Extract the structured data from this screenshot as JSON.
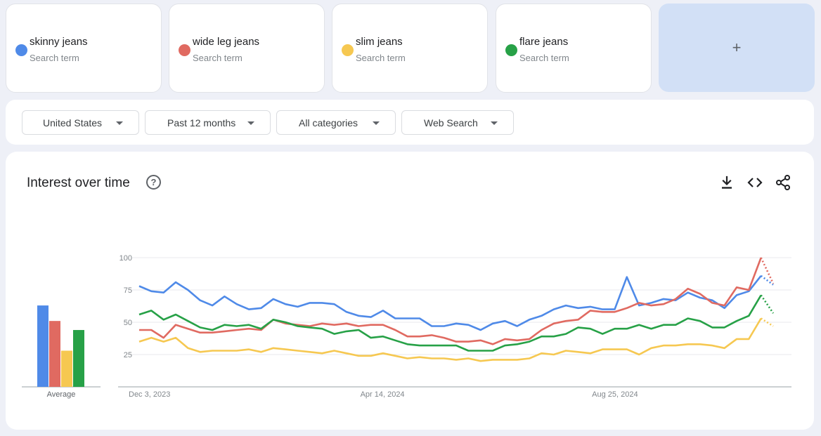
{
  "search_terms": [
    {
      "name": "skinny jeans",
      "sub": "Search term",
      "color": "#4f8ae8"
    },
    {
      "name": "wide leg jeans",
      "sub": "Search term",
      "color": "#e06a61"
    },
    {
      "name": "slim jeans",
      "sub": "Search term",
      "color": "#f6c851"
    },
    {
      "name": "flare jeans",
      "sub": "Search term",
      "color": "#27a147"
    }
  ],
  "add_button": {
    "label": "+"
  },
  "filters": {
    "region": "United States",
    "time_range": "Past 12 months",
    "category": "All categories",
    "search_type": "Web Search"
  },
  "section": {
    "title": "Interest over time",
    "help_glyph": "?",
    "download_icon": "download-icon",
    "embed_icon": "embed-code-icon",
    "share_icon": "share-icon"
  },
  "chart_data": {
    "type": "line",
    "title": "Interest over time",
    "xlabel": "",
    "ylabel": "",
    "ylim": [
      0,
      100
    ],
    "y_ticks": [
      25,
      50,
      75,
      100
    ],
    "grid": true,
    "x_tick_labels": [
      {
        "label": "Dec 3, 2023",
        "index": 0
      },
      {
        "label": "Apr 14, 2024",
        "index": 19
      },
      {
        "label": "Aug 25, 2024",
        "index": 38
      }
    ],
    "average_label": "Average",
    "partial_data_last_point": true,
    "series": [
      {
        "name": "skinny jeans",
        "color": "#4f8ae8",
        "average": 63,
        "values": [
          78,
          74,
          73,
          81,
          75,
          67,
          63,
          70,
          64,
          60,
          61,
          68,
          64,
          62,
          65,
          65,
          64,
          58,
          55,
          54,
          59,
          53,
          53,
          53,
          47,
          47,
          49,
          48,
          44,
          49,
          51,
          47,
          52,
          55,
          60,
          63,
          61,
          62,
          60,
          60,
          85,
          63,
          65,
          68,
          67,
          73,
          69,
          67,
          61,
          71,
          74,
          86,
          79
        ]
      },
      {
        "name": "wide leg jeans",
        "color": "#e06a61",
        "average": 51,
        "values": [
          44,
          44,
          38,
          48,
          45,
          42,
          42,
          43,
          44,
          45,
          44,
          52,
          49,
          48,
          47,
          49,
          48,
          49,
          47,
          48,
          48,
          44,
          39,
          39,
          40,
          38,
          35,
          35,
          36,
          33,
          37,
          36,
          37,
          44,
          49,
          51,
          52,
          59,
          58,
          58,
          61,
          65,
          63,
          64,
          68,
          76,
          72,
          65,
          63,
          77,
          75,
          100,
          80
        ]
      },
      {
        "name": "slim jeans",
        "color": "#f6c851",
        "average": 28,
        "values": [
          35,
          38,
          35,
          38,
          30,
          27,
          28,
          28,
          28,
          29,
          27,
          30,
          29,
          28,
          27,
          26,
          28,
          26,
          24,
          24,
          26,
          24,
          22,
          23,
          22,
          22,
          21,
          22,
          20,
          21,
          21,
          21,
          22,
          26,
          25,
          28,
          27,
          26,
          29,
          29,
          29,
          25,
          30,
          32,
          32,
          33,
          33,
          32,
          30,
          37,
          37,
          53,
          47
        ]
      },
      {
        "name": "flare jeans",
        "color": "#27a147",
        "average": 44,
        "values": [
          56,
          59,
          52,
          56,
          51,
          46,
          44,
          48,
          47,
          48,
          45,
          52,
          50,
          47,
          46,
          45,
          41,
          43,
          44,
          38,
          39,
          36,
          33,
          32,
          32,
          32,
          32,
          28,
          28,
          28,
          32,
          33,
          35,
          39,
          39,
          41,
          46,
          45,
          41,
          45,
          45,
          48,
          45,
          48,
          48,
          53,
          51,
          46,
          46,
          51,
          55,
          71,
          57
        ]
      }
    ]
  }
}
